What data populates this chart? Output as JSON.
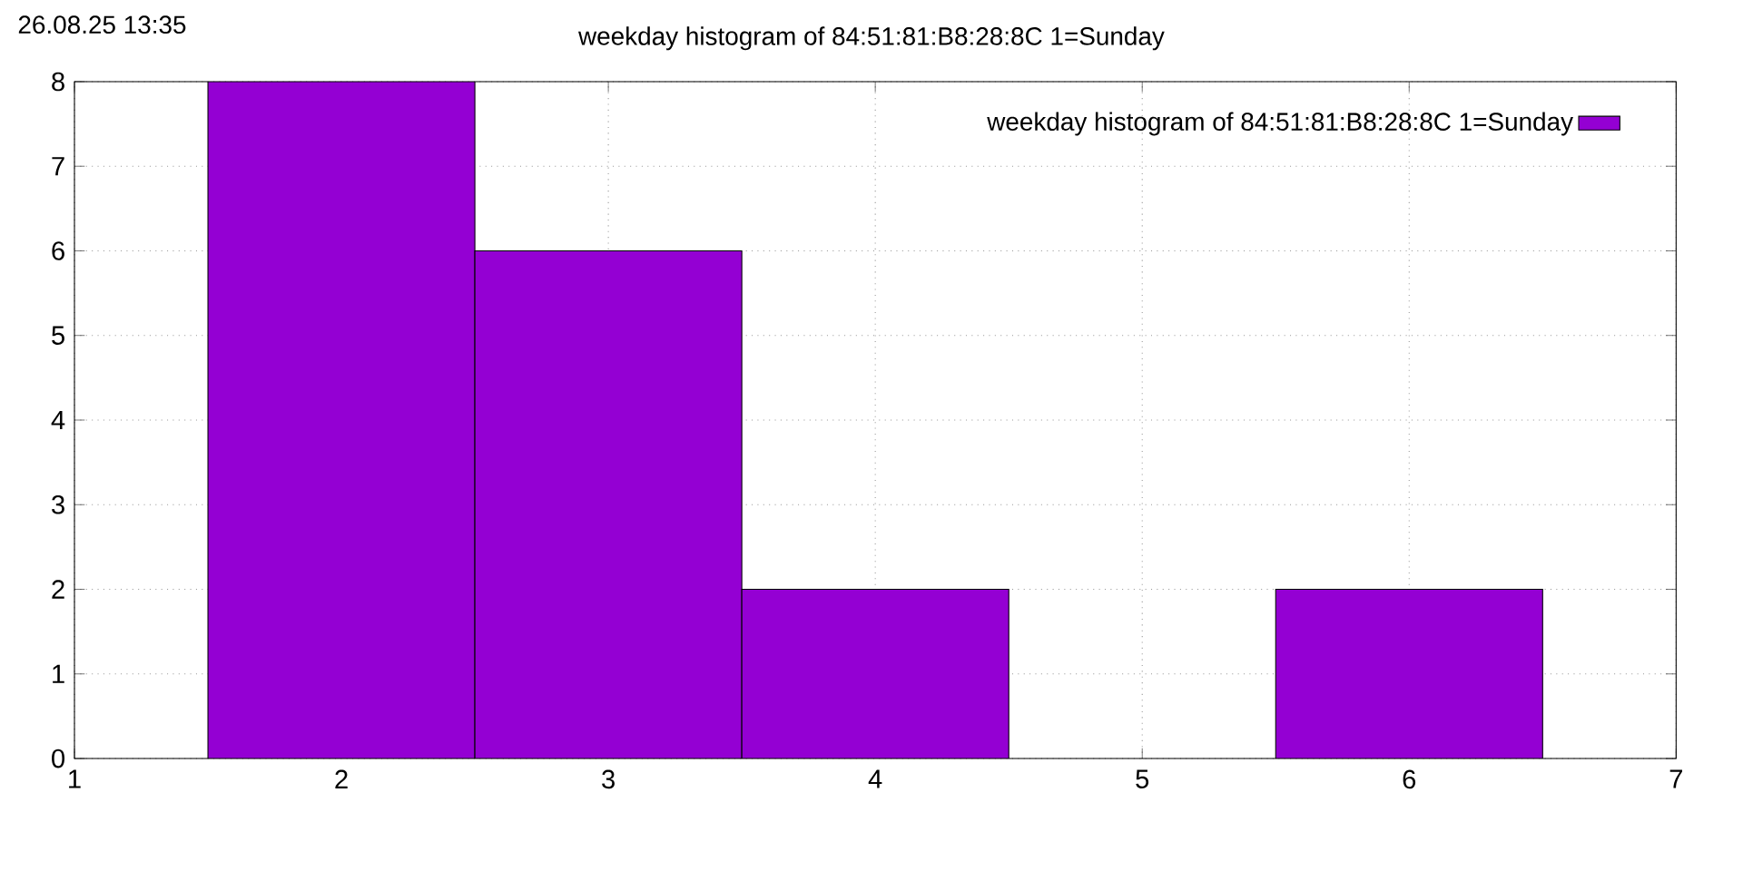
{
  "chart_data": {
    "type": "histogram",
    "title": "weekday histogram of 84:51:81:B8:28:8C 1=Sunday",
    "annotations": [
      "26.08.25 13:35"
    ],
    "bins": [
      1.5,
      2.5,
      3.5,
      4.5,
      5.5,
      6.5
    ],
    "series": [
      {
        "name": "weekday histogram of 84:51:81:B8:28:8C 1=Sunday",
        "color": "#9400d3",
        "values": [
          8,
          6,
          2,
          0,
          2
        ]
      }
    ],
    "xlim": [
      1,
      7
    ],
    "xticks": [
      1,
      2,
      3,
      4,
      5,
      6,
      7
    ],
    "ylim": [
      0,
      8
    ],
    "yticks": [
      0,
      1,
      2,
      3,
      4,
      5,
      6,
      7,
      8
    ],
    "grid": true,
    "legend": "top right"
  }
}
